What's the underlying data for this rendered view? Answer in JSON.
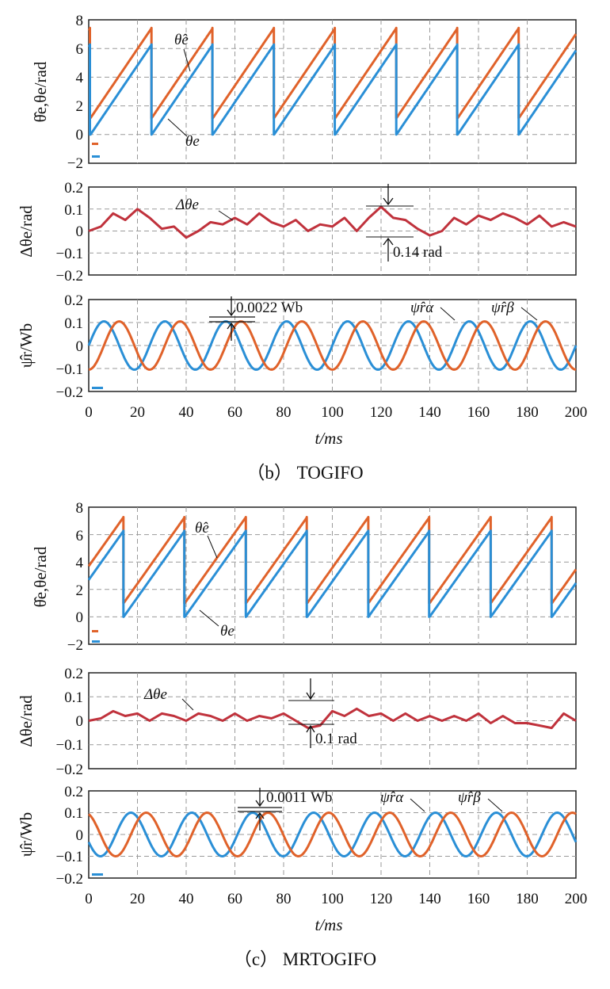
{
  "colors": {
    "orange": "#e0622a",
    "blue": "#2a8fd6",
    "red": "#c0323c",
    "grid": "#9a9a9a"
  },
  "chart_data": [
    {
      "type": "line",
      "figure": "b",
      "panel": "angle",
      "ylabel": "θ̂e,θe/rad",
      "ylim": [
        -2,
        8
      ],
      "yticks": [
        "8",
        "6",
        "4",
        "2",
        "0",
        "−2"
      ],
      "xlim": [
        0,
        200
      ],
      "series": [
        {
          "name": "θ̂e",
          "color": "orange",
          "sawtooth": {
            "start": 6.1,
            "slope": 0.25,
            "wrap": 6.28,
            "offset": 1.15
          }
        },
        {
          "name": "θe",
          "color": "blue",
          "sawtooth": {
            "start": 6.1,
            "slope": 0.25,
            "wrap": 6.28,
            "offset": 0
          }
        }
      ],
      "annotations": [
        "θ̂e",
        "θe"
      ]
    },
    {
      "type": "line",
      "figure": "b",
      "panel": "error",
      "ylabel": "Δθe/rad",
      "ylim": [
        -0.2,
        0.2
      ],
      "yticks": [
        "0.2",
        "0.1",
        "0",
        "−0.1",
        "−0.2"
      ],
      "xlim": [
        0,
        200
      ],
      "series": [
        {
          "name": "Δθe",
          "color": "red",
          "x": [
            0,
            5,
            10,
            15,
            20,
            25,
            30,
            35,
            40,
            45,
            50,
            55,
            60,
            65,
            70,
            75,
            80,
            85,
            90,
            95,
            100,
            105,
            110,
            115,
            120,
            125,
            130,
            135,
            140,
            145,
            150,
            155,
            160,
            165,
            170,
            175,
            180,
            185,
            190,
            195,
            200
          ],
          "y": [
            0.0,
            0.02,
            0.08,
            0.05,
            0.1,
            0.06,
            0.01,
            0.02,
            -0.03,
            0.0,
            0.04,
            0.03,
            0.06,
            0.03,
            0.08,
            0.04,
            0.02,
            0.05,
            0.0,
            0.03,
            0.02,
            0.06,
            0.0,
            0.06,
            0.11,
            0.06,
            0.05,
            0.01,
            -0.02,
            0.0,
            0.06,
            0.03,
            0.07,
            0.05,
            0.08,
            0.06,
            0.03,
            0.07,
            0.02,
            0.04,
            0.02
          ]
        }
      ],
      "annotations": [
        "Δθe",
        "0.14 rad"
      ]
    },
    {
      "type": "line",
      "figure": "b",
      "panel": "flux",
      "ylabel": "ψ̂r/Wb",
      "ylim": [
        -0.2,
        0.2
      ],
      "yticks": [
        "0.2",
        "0.1",
        "0",
        "−0.1",
        "−0.2"
      ],
      "xlim": [
        0,
        200
      ],
      "xticks": [
        "0",
        "20",
        "40",
        "60",
        "80",
        "100",
        "120",
        "140",
        "160",
        "180",
        "200"
      ],
      "xlabel": "t/ms",
      "series": [
        {
          "name": "ψ̂rα",
          "color": "blue",
          "sine": {
            "amplitude": 0.105,
            "period": 25,
            "phase": 0
          }
        },
        {
          "name": "ψ̂rβ",
          "color": "orange",
          "sine": {
            "amplitude": 0.105,
            "period": 25,
            "phase": -1.57
          }
        }
      ],
      "annotations": [
        "0.0022 Wb",
        "ψ̂rα",
        "ψ̂rβ"
      ],
      "caption": "（b） TOGIFO"
    },
    {
      "type": "line",
      "figure": "c",
      "panel": "angle",
      "ylabel": "θ̂e,θe/rad",
      "ylim": [
        -2,
        8
      ],
      "yticks": [
        "8",
        "6",
        "4",
        "2",
        "0",
        "−2"
      ],
      "xlim": [
        0,
        200
      ],
      "series": [
        {
          "name": "θ̂e",
          "color": "orange",
          "sawtooth": {
            "start": 2.7,
            "slope": 0.25,
            "wrap": 6.28,
            "offset": 1.0
          }
        },
        {
          "name": "θe",
          "color": "blue",
          "sawtooth": {
            "start": 2.7,
            "slope": 0.25,
            "wrap": 6.28,
            "offset": 0
          }
        }
      ],
      "annotations": [
        "θ̂e",
        "θe"
      ]
    },
    {
      "type": "line",
      "figure": "c",
      "panel": "error",
      "ylabel": "Δθe/rad",
      "ylim": [
        -0.2,
        0.2
      ],
      "yticks": [
        "0.2",
        "0.1",
        "0",
        "−0.1",
        "−0.2"
      ],
      "xlim": [
        0,
        200
      ],
      "series": [
        {
          "name": "Δθe",
          "color": "red",
          "x": [
            0,
            5,
            10,
            15,
            20,
            25,
            30,
            35,
            40,
            45,
            50,
            55,
            60,
            65,
            70,
            75,
            80,
            85,
            90,
            95,
            100,
            105,
            110,
            115,
            120,
            125,
            130,
            135,
            140,
            145,
            150,
            155,
            160,
            165,
            170,
            175,
            180,
            185,
            190,
            195,
            200
          ],
          "y": [
            0.0,
            0.01,
            0.04,
            0.02,
            0.03,
            0.0,
            0.03,
            0.02,
            0.0,
            0.03,
            0.02,
            0.0,
            0.03,
            0.0,
            0.02,
            0.01,
            0.03,
            0.0,
            -0.03,
            -0.02,
            0.04,
            0.02,
            0.05,
            0.02,
            0.03,
            0.0,
            0.03,
            0.0,
            0.02,
            0.0,
            0.02,
            0.0,
            0.03,
            -0.01,
            0.02,
            -0.01,
            -0.01,
            -0.02,
            -0.03,
            0.03,
            0.0
          ]
        }
      ],
      "annotations": [
        "Δθe",
        "0.1 rad"
      ]
    },
    {
      "type": "line",
      "figure": "c",
      "panel": "flux",
      "ylabel": "ψ̂r/Wb",
      "ylim": [
        -0.2,
        0.2
      ],
      "yticks": [
        "0.2",
        "0.1",
        "0",
        "−0.1",
        "−0.2"
      ],
      "xlim": [
        0,
        200
      ],
      "xticks": [
        "0",
        "20",
        "40",
        "60",
        "80",
        "100",
        "120",
        "140",
        "160",
        "180",
        "200"
      ],
      "xlabel": "t/ms",
      "series": [
        {
          "name": "ψ̂rα",
          "color": "blue",
          "sine": {
            "amplitude": 0.1,
            "period": 25,
            "phase": 3.5
          }
        },
        {
          "name": "ψ̂rβ",
          "color": "orange",
          "sine": {
            "amplitude": 0.1,
            "period": 25,
            "phase": 1.93
          }
        }
      ],
      "annotations": [
        "0.0011 Wb",
        "ψ̂rα",
        "ψ̂rβ"
      ],
      "caption": "（c） MRTOGIFO"
    }
  ]
}
